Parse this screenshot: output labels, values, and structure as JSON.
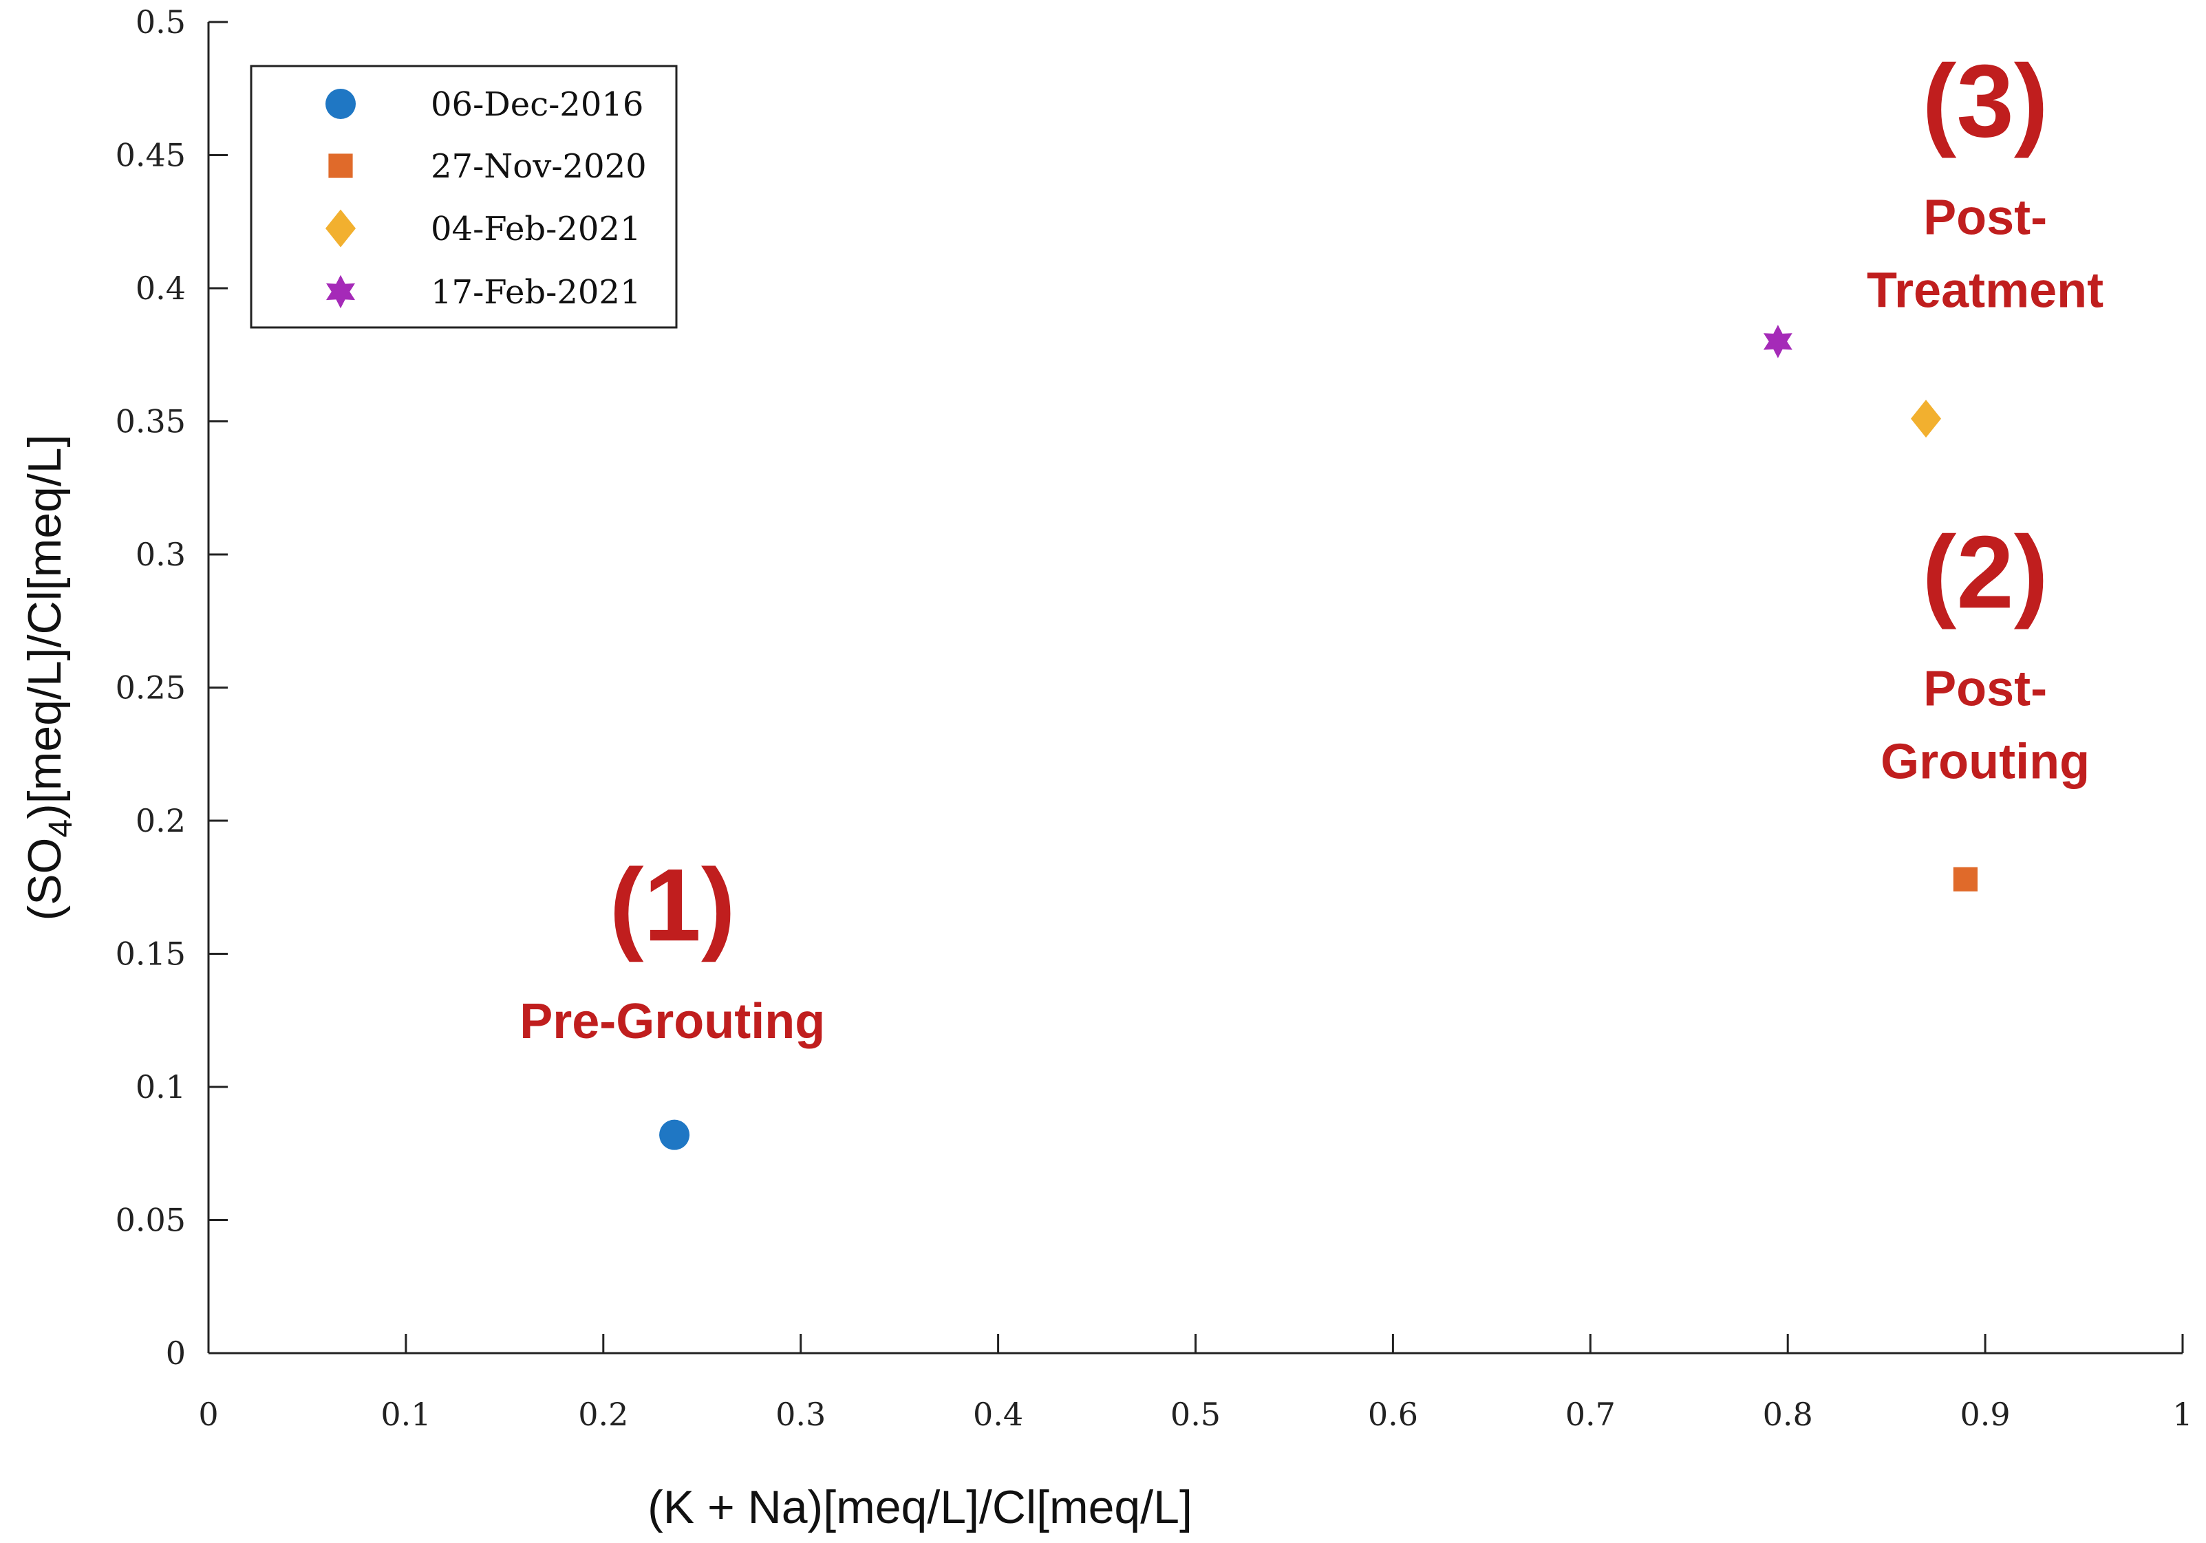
{
  "chart_data": {
    "type": "scatter",
    "title": "",
    "xlabel": "(K + Na)[meq/L]/Cl[meq/L]",
    "ylabel_parts": {
      "pre": "(SO",
      "sub": "4",
      "post": ")[meq/L]/Cl[meq/L]"
    },
    "xlim": [
      0,
      1
    ],
    "ylim": [
      0,
      0.5
    ],
    "x_ticks": [
      "0",
      "0.1",
      "0.2",
      "0.3",
      "0.4",
      "0.5",
      "0.6",
      "0.7",
      "0.8",
      "0.9",
      "1"
    ],
    "y_ticks": [
      "0",
      "0.05",
      "0.1",
      "0.15",
      "0.2",
      "0.25",
      "0.3",
      "0.35",
      "0.4",
      "0.45",
      "0.5"
    ],
    "grid": false,
    "legend_position": "top-left",
    "series": [
      {
        "name": "06-Dec-2016",
        "marker": "circle",
        "color": "#1f77c4",
        "x": 0.236,
        "y": 0.082
      },
      {
        "name": "27-Nov-2020",
        "marker": "square",
        "color": "#e06a2a",
        "x": 0.89,
        "y": 0.178
      },
      {
        "name": "04-Feb-2021",
        "marker": "diamond",
        "color": "#f2b02f",
        "x": 0.87,
        "y": 0.351
      },
      {
        "name": "17-Feb-2021",
        "marker": "hexagram",
        "color": "#a52ab8",
        "x": 0.795,
        "y": 0.38
      }
    ],
    "annotations": [
      {
        "number": "(1)",
        "lines": [
          "Pre-Grouting"
        ],
        "x": 0.235,
        "y": 0.155
      },
      {
        "number": "(2)",
        "lines": [
          "Post-",
          "Grouting"
        ],
        "x": 0.9,
        "y": 0.28
      },
      {
        "number": "(3)",
        "lines": [
          "Post-",
          "Treatment"
        ],
        "x": 0.9,
        "y": 0.457
      }
    ],
    "annotation_color": "#c01e1e"
  }
}
